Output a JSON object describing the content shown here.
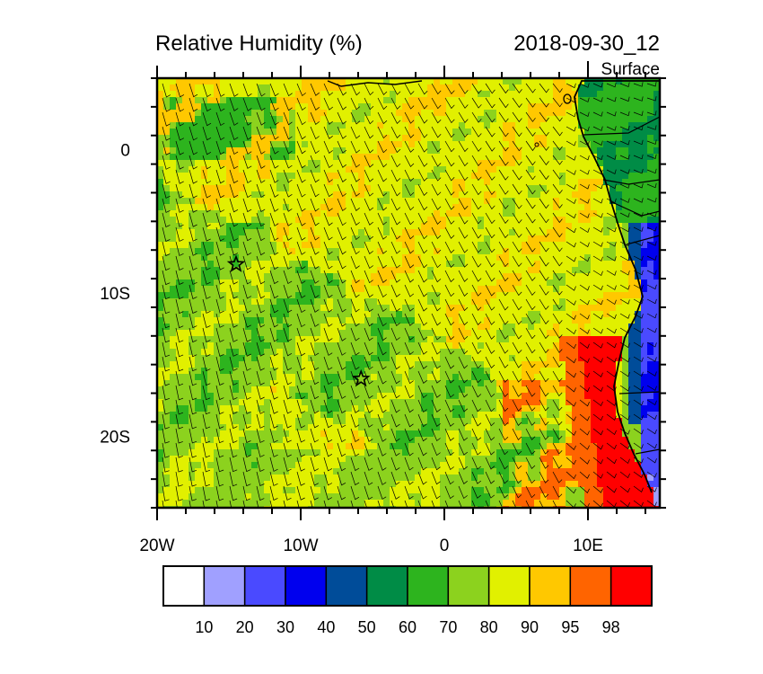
{
  "title": "Relative Humidity (%)",
  "datetime": "2018-09-30_12",
  "level": "Surface",
  "map": {
    "lon_range": [
      -20,
      15
    ],
    "lat_range": [
      -25,
      5
    ],
    "lon_ticks": [
      {
        "value": -20,
        "label": "20W"
      },
      {
        "value": -10,
        "label": "10W"
      },
      {
        "value": 0,
        "label": "0"
      },
      {
        "value": 10,
        "label": "10E"
      }
    ],
    "lat_ticks": [
      {
        "value": 0,
        "label": "0"
      },
      {
        "value": -10,
        "label": "10S"
      },
      {
        "value": -20,
        "label": "20S"
      }
    ],
    "markers": [
      {
        "lon": -14.5,
        "lat": -8.0,
        "symbol": "star"
      },
      {
        "lon": -5.8,
        "lat": -16.0,
        "symbol": "star"
      }
    ],
    "overlay": "wind barbs"
  },
  "colorbar": {
    "labels": [
      "10",
      "20",
      "30",
      "40",
      "50",
      "60",
      "70",
      "80",
      "90",
      "95",
      "98"
    ],
    "colors": [
      "#ffffff",
      "#a0a0ff",
      "#4a4aff",
      "#0000ee",
      "#004c99",
      "#008c46",
      "#2db41e",
      "#8cd21e",
      "#e1f000",
      "#ffc800",
      "#ff6400",
      "#ff0000"
    ]
  }
}
